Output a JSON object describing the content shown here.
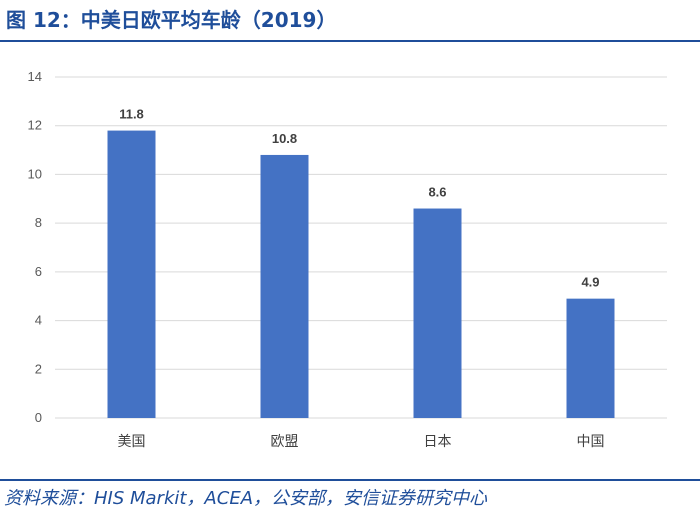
{
  "figure": {
    "title": "图 12：中美日欧平均车龄（2019）",
    "source": "资料来源：HIS Markit，ACEA，公安部，安信证券研究中心"
  },
  "colors": {
    "bar": "#4472c4",
    "accent": "#1f4e9a",
    "grid": "#d9d9d9"
  },
  "chart_data": {
    "type": "bar",
    "categories": [
      "美国",
      "欧盟",
      "日本",
      "中国"
    ],
    "values": [
      11.8,
      10.8,
      8.6,
      4.9
    ],
    "data_labels": [
      "11.8",
      "10.8",
      "8.6",
      "4.9"
    ],
    "y_ticks": [
      "0",
      "2",
      "4",
      "6",
      "8",
      "10",
      "12",
      "14"
    ],
    "ylim": [
      0,
      14
    ],
    "grid": true,
    "legend": "none"
  }
}
